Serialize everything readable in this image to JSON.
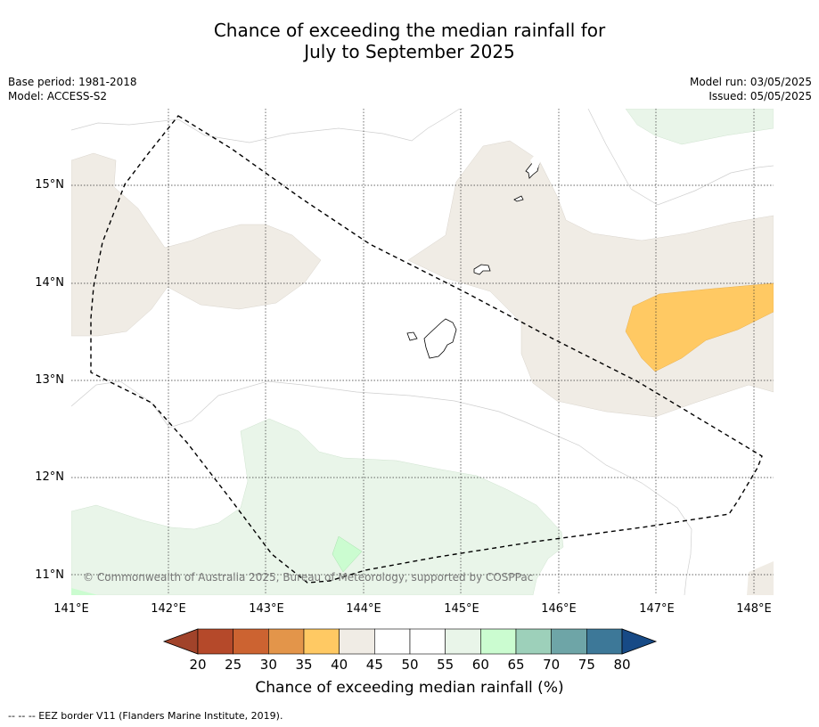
{
  "title_line1": "Chance of exceeding the median rainfall for",
  "title_line2": "July to September 2025",
  "base_period": "Base period: 1981-2018",
  "model": "Model: ACCESS-S2",
  "model_run": "Model run: 03/05/2025",
  "issued": "Issued: 05/05/2025",
  "lat_labels": [
    "15°N",
    "14°N",
    "13°N",
    "12°N",
    "11°N"
  ],
  "lon_labels": [
    "141°E",
    "142°E",
    "143°E",
    "144°E",
    "145°E",
    "146°E",
    "147°E",
    "148°E"
  ],
  "copyright": "© Commonwealth of Australia 2025, Bureau of Meteorology, supported by COSPPac",
  "colorbar": {
    "ticks": [
      "20",
      "25",
      "30",
      "35",
      "40",
      "45",
      "50",
      "55",
      "60",
      "65",
      "70",
      "75",
      "80"
    ],
    "colors": [
      "#a1432a",
      "#b5492a",
      "#cc6331",
      "#e3954a",
      "#ffc963",
      "#f0ece5",
      "#ffffff",
      "#ffffff",
      "#e9f5e9",
      "#cbfcd0",
      "#9dd0ba",
      "#6ea5a7",
      "#3d7898",
      "#174a86"
    ],
    "label": "Chance of exceeding median rainfall (%)"
  },
  "footnote": "--  --  -- EEZ border V11 (Flanders Marine Institute, 2019).",
  "map": {
    "lon_range": [
      141,
      148.2
    ],
    "lat_range": [
      10.8,
      15.8
    ],
    "gridlines": true,
    "colors": {
      "near_45_50": "#f0ece5",
      "35_40": "#ffc963",
      "55_60": "#e9f5e9",
      "60_65": "#cbfcd0"
    }
  }
}
